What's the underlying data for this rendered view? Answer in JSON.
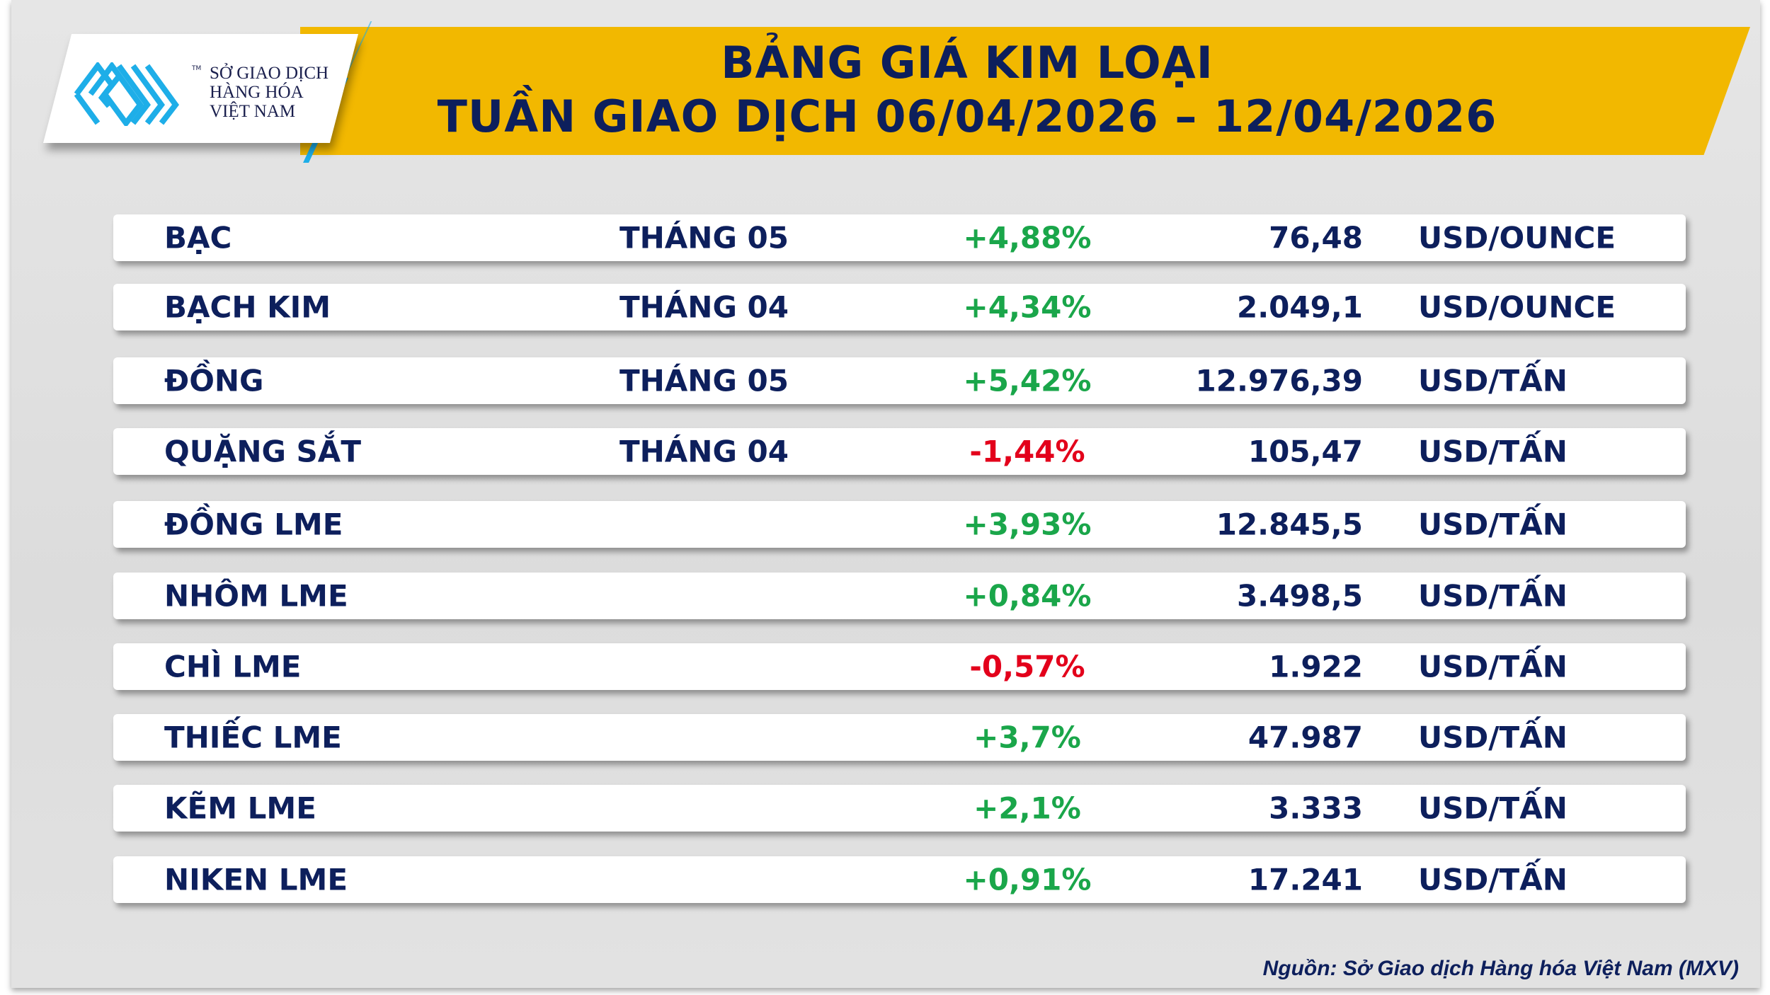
{
  "header": {
    "title_line1": "BẢNG GIÁ KIM LOẠI",
    "title_line2": "TUẦN GIAO DỊCH 06/04/2026 – 12/04/2026",
    "logo": {
      "line1": "SỞ GIAO DỊCH",
      "line2": "HÀNG HÓA",
      "line3": "VIỆT NAM",
      "tm": "TM"
    }
  },
  "colors": {
    "banner": "#f2b800",
    "navy": "#0d1f5c",
    "positive": "#1aa64a",
    "negative": "#e3001b",
    "logo_blue": "#1eaee8"
  },
  "rows": [
    {
      "name": "BẠC",
      "month": "THÁNG 05",
      "change": "+4,88%",
      "direction": "up",
      "price": "76,48",
      "unit": "USD/OUNCE"
    },
    {
      "name": "BẠCH KIM",
      "month": "THÁNG 04",
      "change": "+4,34%",
      "direction": "up",
      "price": "2.049,1",
      "unit": "USD/OUNCE"
    },
    {
      "name": "ĐỒNG",
      "month": "THÁNG 05",
      "change": "+5,42%",
      "direction": "up",
      "price": "12.976,39",
      "unit": "USD/TẤN"
    },
    {
      "name": "QUẶNG SẮT",
      "month": "THÁNG 04",
      "change": "-1,44%",
      "direction": "down",
      "price": "105,47",
      "unit": "USD/TẤN"
    },
    {
      "name": "ĐỒNG LME",
      "month": "",
      "change": "+3,93%",
      "direction": "up",
      "price": "12.845,5",
      "unit": "USD/TẤN"
    },
    {
      "name": "NHÔM LME",
      "month": "",
      "change": "+0,84%",
      "direction": "up",
      "price": "3.498,5",
      "unit": "USD/TẤN"
    },
    {
      "name": "CHÌ LME",
      "month": "",
      "change": "-0,57%",
      "direction": "down",
      "price": "1.922",
      "unit": "USD/TẤN"
    },
    {
      "name": "THIẾC LME",
      "month": "",
      "change": "+3,7%",
      "direction": "up",
      "price": "47.987",
      "unit": "USD/TẤN"
    },
    {
      "name": "KẼM LME",
      "month": "",
      "change": "+2,1%",
      "direction": "up",
      "price": "3.333",
      "unit": "USD/TẤN"
    },
    {
      "name": "NIKEN LME",
      "month": "",
      "change": "+0,91%",
      "direction": "up",
      "price": "17.241",
      "unit": "USD/TẤN"
    }
  ],
  "footer": {
    "source": "Nguồn: Sở Giao dịch Hàng hóa Việt Nam (MXV)"
  }
}
